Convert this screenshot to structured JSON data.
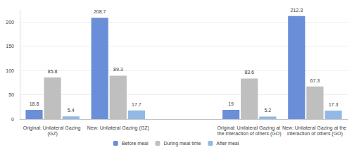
{
  "chart_data": {
    "type": "bar",
    "categories": [
      "Original: Unilateral Gazing (GZ)",
      "New: Unilateral Gazing (GZ)",
      null,
      "Original: Unilateral Gazing at the interaction of others (GO)",
      "New: Unilateral Gazing at the interaction of others (GO)"
    ],
    "series": [
      {
        "name": "Before meal",
        "color": "#6a8fd8",
        "values": [
          18.8,
          208.7,
          null,
          19,
          212.3
        ]
      },
      {
        "name": "During meal time",
        "color": "#bfbfbf",
        "values": [
          85.8,
          89.3,
          null,
          83.6,
          67.3
        ]
      },
      {
        "name": "After meal",
        "color": "#93b8e6",
        "values": [
          5.4,
          17.7,
          null,
          5.2,
          17.3
        ]
      }
    ],
    "ylim": [
      0,
      225
    ],
    "yticks": [
      0,
      50,
      100,
      150,
      200
    ],
    "grid": true,
    "legend": "bottom",
    "data_labels": true
  }
}
